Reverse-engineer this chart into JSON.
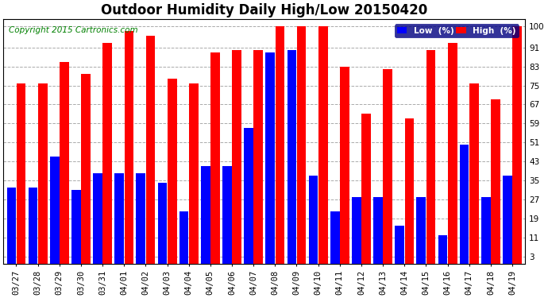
{
  "title": "Outdoor Humidity Daily High/Low 20150420",
  "copyright": "Copyright 2015 Cartronics.com",
  "categories": [
    "03/27",
    "03/28",
    "03/29",
    "03/30",
    "03/31",
    "04/01",
    "04/02",
    "04/03",
    "04/04",
    "04/05",
    "04/06",
    "04/07",
    "04/08",
    "04/09",
    "04/10",
    "04/11",
    "04/12",
    "04/13",
    "04/14",
    "04/15",
    "04/16",
    "04/17",
    "04/18",
    "04/19"
  ],
  "high": [
    76,
    76,
    85,
    80,
    93,
    98,
    96,
    78,
    76,
    89,
    90,
    90,
    100,
    100,
    100,
    83,
    63,
    82,
    61,
    90,
    93,
    76,
    69,
    100
  ],
  "low": [
    32,
    32,
    45,
    31,
    38,
    38,
    38,
    34,
    22,
    41,
    41,
    57,
    89,
    90,
    37,
    22,
    28,
    28,
    16,
    28,
    12,
    50,
    28,
    37
  ],
  "high_color": "#ff0000",
  "low_color": "#0000ff",
  "bg_color": "#ffffff",
  "grid_color": "#aaaaaa",
  "yticks": [
    3,
    11,
    19,
    27,
    35,
    43,
    51,
    59,
    67,
    75,
    83,
    91,
    100
  ],
  "ymin": 0,
  "ymax": 103,
  "title_fontsize": 12,
  "copyright_fontsize": 7.5,
  "tick_fontsize": 7.5,
  "legend_low_label": "Low  (%)",
  "legend_high_label": "High  (%)"
}
